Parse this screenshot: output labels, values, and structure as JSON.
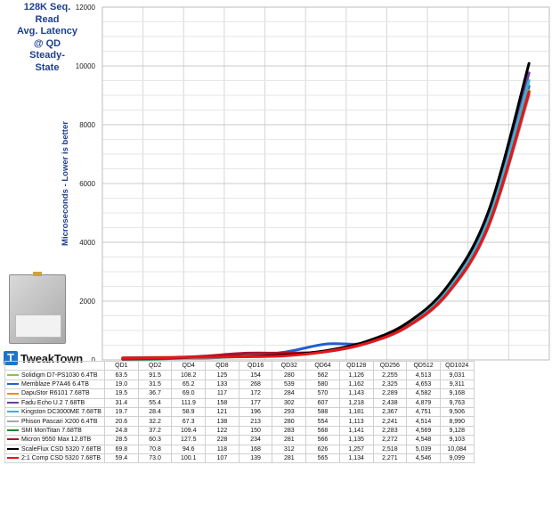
{
  "chart_data": {
    "type": "line",
    "title_lines": [
      "128K Seq.",
      "Read",
      "Avg. Latency",
      "@ QD",
      "Steady-",
      "State"
    ],
    "ylabel": "Microseconds - Lower is better",
    "ylim": [
      0,
      12000
    ],
    "yticks": [
      0,
      2000,
      4000,
      6000,
      8000,
      10000,
      12000
    ],
    "ytick_labels": [
      "0",
      "2000",
      "4000",
      "6000",
      "8000",
      "10000",
      "12000"
    ],
    "categories": [
      "QD1",
      "QD2",
      "QD4",
      "QD8",
      "QD16",
      "QD32",
      "QD64",
      "QD128",
      "QD256",
      "QD512",
      "QD1024"
    ],
    "grid": true,
    "series": [
      {
        "name": "Solidigm D7-PS1030 6.4TB",
        "color": "#8fbf4a",
        "values": [
          63.5,
          91.5,
          108.2,
          125,
          154,
          280,
          562,
          1126,
          2255,
          4513,
          9031
        ],
        "labels": [
          "63.5",
          "91.5",
          "108.2",
          "125",
          "154",
          "280",
          "562",
          "1,126",
          "2,255",
          "4,513",
          "9,031"
        ]
      },
      {
        "name": "Memblaze P7A46 6.4TB",
        "color": "#1f5fd0",
        "values": [
          19.0,
          31.5,
          65.2,
          133,
          268,
          539,
          580,
          1162,
          2325,
          4653,
          9311
        ],
        "labels": [
          "19.0",
          "31.5",
          "65.2",
          "133",
          "268",
          "539",
          "580",
          "1,162",
          "2,325",
          "4,653",
          "9,311"
        ]
      },
      {
        "name": "DapuStor R6101 7.68TB",
        "color": "#f08a24",
        "values": [
          19.5,
          36.7,
          69.0,
          117,
          172,
          284,
          570,
          1143,
          2289,
          4582,
          9168
        ],
        "labels": [
          "19.5",
          "36.7",
          "69.0",
          "117",
          "172",
          "284",
          "570",
          "1,143",
          "2,289",
          "4,582",
          "9,168"
        ]
      },
      {
        "name": "Fadu Echo U.2 7.68TB",
        "color": "#6a3fa0",
        "values": [
          31.4,
          55.4,
          111.9,
          158,
          177,
          302,
          607,
          1218,
          2438,
          4879,
          9763
        ],
        "labels": [
          "31.4",
          "55.4",
          "111.9",
          "158",
          "177",
          "302",
          "607",
          "1,218",
          "2,438",
          "4,879",
          "9,763"
        ]
      },
      {
        "name": "Kingston DC3000ME 7.68TB",
        "color": "#3fb0c9",
        "values": [
          19.7,
          28.4,
          58.9,
          121,
          196,
          293,
          588,
          1181,
          2367,
          4751,
          9506
        ],
        "labels": [
          "19.7",
          "28.4",
          "58.9",
          "121",
          "196",
          "293",
          "588",
          "1,181",
          "2,367",
          "4,751",
          "9,506"
        ]
      },
      {
        "name": "Phison Pascari X200 6.4TB",
        "color": "#a8a8a8",
        "values": [
          20.6,
          32.2,
          67.3,
          138,
          213,
          280,
          554,
          1113,
          2241,
          4514,
          8990
        ],
        "labels": [
          "20.6",
          "32.2",
          "67.3",
          "138",
          "213",
          "280",
          "554",
          "1,113",
          "2,241",
          "4,514",
          "8,990"
        ]
      },
      {
        "name": "SMI MonTitan 7.68TB",
        "color": "#1c8a2c",
        "values": [
          24.8,
          37.2,
          109.4,
          122,
          150,
          283,
          568,
          1141,
          2283,
          4569,
          9128
        ],
        "labels": [
          "24.8",
          "37.2",
          "109.4",
          "122",
          "150",
          "283",
          "568",
          "1,141",
          "2,283",
          "4,569",
          "9,128"
        ]
      },
      {
        "name": "Micron 9550 Max 12.8TB",
        "color": "#b01030",
        "values": [
          28.5,
          60.3,
          127.5,
          228,
          234,
          281,
          566,
          1135,
          2272,
          4548,
          9103
        ],
        "labels": [
          "28.5",
          "60.3",
          "127.5",
          "228",
          "234",
          "281",
          "566",
          "1,135",
          "2,272",
          "4,548",
          "9,103"
        ]
      },
      {
        "name": "ScaleFlux CSD 5320 7.68TB",
        "color": "#000000",
        "values": [
          69.8,
          70.8,
          94.6,
          118,
          168,
          312,
          626,
          1257,
          2518,
          5039,
          10084
        ],
        "labels": [
          "69.8",
          "70.8",
          "94.6",
          "118",
          "168",
          "312",
          "626",
          "1,257",
          "2,518",
          "5,039",
          "10,084"
        ]
      },
      {
        "name": "2:1 Comp CSD 5320 7.68TB",
        "color": "#e8141c",
        "values": [
          59.4,
          73.0,
          100.1,
          107,
          139,
          281,
          565,
          1134,
          2271,
          4546,
          9099
        ],
        "labels": [
          "59.4",
          "73.0",
          "100.1",
          "107",
          "139",
          "281",
          "565",
          "1,134",
          "2,271",
          "4,546",
          "9,099"
        ]
      }
    ]
  },
  "logo": {
    "text": "TweakTown",
    "mark": "T"
  }
}
